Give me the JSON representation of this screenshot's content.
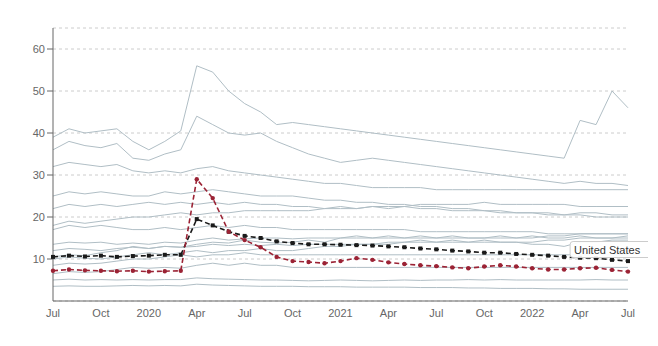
{
  "chart_data": {
    "type": "line",
    "categories": [
      "Jul",
      null,
      null,
      "Oct",
      null,
      null,
      "2020",
      null,
      null,
      "Apr",
      null,
      null,
      "Jul",
      null,
      null,
      "Oct",
      null,
      null,
      "2021",
      null,
      null,
      "Apr",
      null,
      null,
      "Jul",
      null,
      null,
      "Oct",
      null,
      null,
      "2022",
      null,
      null,
      "Apr",
      null,
      null,
      "Jul"
    ],
    "ylim": [
      0,
      65
    ],
    "yticks": [
      10,
      20,
      30,
      40,
      50,
      60
    ],
    "grid": true,
    "series": [
      {
        "color": "#b0bec5",
        "marker": "none",
        "line_style": "solid",
        "values": [
          10.0,
          10.5,
          10.2,
          10.0,
          10.5,
          11.0,
          11.5,
          11.0,
          11.5,
          12.0,
          11.5,
          12.0,
          12.0,
          12.5,
          12.0,
          12.0,
          12.5,
          13.0,
          13.0,
          13.5,
          13.5,
          14.0,
          14.0,
          14.5,
          14.0,
          14.5,
          14.0,
          14.5,
          14.0,
          14.0,
          13.5,
          13.5,
          13.0,
          14.0,
          14.0,
          14.5,
          14.5
        ]
      },
      {
        "color": "#b0bec5",
        "marker": "none",
        "line_style": "solid",
        "values": [
          5.0,
          5.2,
          5.0,
          5.1,
          5.0,
          5.1,
          5.0,
          5.1,
          5.1,
          5.5,
          5.3,
          5.2,
          5.1,
          5.0,
          5.0,
          4.9,
          4.8,
          4.9,
          5.0,
          4.9,
          4.8,
          4.9,
          5.0,
          4.9,
          5.0,
          5.0,
          5.1,
          5.0,
          5.1,
          5.0,
          5.0,
          5.0,
          5.0,
          5.0,
          5.1,
          5.0,
          5.0
        ]
      },
      {
        "color": "#b0bec5",
        "marker": "none",
        "line_style": "solid",
        "values": [
          3.5,
          3.6,
          3.5,
          3.5,
          3.6,
          3.7,
          3.6,
          3.7,
          3.6,
          4.0,
          3.8,
          3.7,
          3.6,
          3.5,
          3.5,
          3.5,
          3.4,
          3.4,
          3.4,
          3.3,
          3.3,
          3.3,
          3.3,
          3.2,
          3.2,
          3.2,
          3.1,
          3.1,
          3.0,
          3.0,
          3.0,
          2.9,
          2.9,
          2.8,
          2.8,
          2.8,
          2.8
        ]
      },
      {
        "color": "#b0bec5",
        "marker": "none",
        "line_style": "solid",
        "values": [
          10.5,
          11.0,
          10.8,
          11.5,
          12.0,
          13.0,
          12.5,
          13.0,
          12.8,
          13.5,
          14.0,
          13.8,
          14.5,
          14.0,
          13.8,
          14.0,
          14.5,
          14.0,
          15.0,
          15.5,
          15.0,
          15.5,
          15.0,
          15.5,
          15.0,
          15.5,
          15.0,
          15.0,
          15.5,
          15.0,
          15.5,
          15.0,
          15.0,
          15.5,
          15.0,
          15.0,
          15.5
        ]
      },
      {
        "color": "#b0bec5",
        "marker": "none",
        "line_style": "solid",
        "values": [
          25.0,
          26.0,
          25.5,
          26.0,
          25.5,
          25.0,
          25.0,
          26.0,
          25.5,
          26.0,
          26.5,
          26.0,
          25.5,
          25.0,
          25.0,
          25.0,
          24.5,
          24.0,
          24.0,
          23.5,
          23.5,
          23.0,
          23.0,
          22.5,
          22.5,
          22.0,
          22.0,
          21.5,
          21.5,
          21.0,
          21.0,
          21.0,
          20.5,
          21.0,
          21.0,
          20.5,
          20.5
        ]
      },
      {
        "color": "#b0bec5",
        "marker": "none",
        "line_style": "solid",
        "values": [
          22.0,
          23.0,
          22.5,
          23.0,
          22.5,
          23.0,
          23.5,
          23.0,
          23.5,
          23.0,
          23.5,
          23.0,
          23.5,
          23.0,
          23.0,
          22.5,
          22.5,
          22.0,
          22.5,
          22.0,
          22.5,
          22.0,
          22.5,
          22.0,
          22.0,
          21.5,
          21.5,
          21.5,
          21.0,
          21.0,
          21.0,
          20.5,
          20.5,
          20.5,
          20.0,
          20.0,
          20.0
        ]
      },
      {
        "color": "#b0bec5",
        "marker": "none",
        "line_style": "solid",
        "values": [
          17.0,
          18.0,
          17.5,
          18.0,
          17.5,
          17.0,
          17.0,
          17.5,
          17.0,
          17.5,
          18.0,
          17.5,
          18.0,
          17.5,
          17.5,
          17.0,
          17.0,
          17.0,
          17.0,
          17.0,
          17.0,
          17.0,
          17.0,
          16.5,
          16.5,
          16.5,
          16.5,
          16.5,
          16.5,
          16.5,
          16.5,
          16.0,
          16.0,
          16.0,
          16.0,
          16.0,
          16.0
        ]
      },
      {
        "color": "#b0bec5",
        "marker": "none",
        "line_style": "solid",
        "values": [
          13.5,
          14.0,
          13.8,
          14.0,
          13.5,
          13.8,
          13.5,
          14.0,
          13.8,
          14.5,
          15.0,
          14.5,
          14.8,
          15.0,
          15.0,
          14.8,
          15.0,
          15.0,
          15.0,
          15.0,
          15.0,
          15.0,
          15.0,
          15.0,
          15.0,
          15.0,
          15.0,
          15.0,
          15.0,
          15.0,
          15.0,
          15.5,
          15.5,
          16.0,
          16.0,
          16.0,
          16.0
        ]
      },
      {
        "color": "#b0bec5",
        "marker": "none",
        "line_style": "solid",
        "values": [
          36.0,
          38.0,
          37.0,
          36.5,
          37.5,
          34.0,
          33.5,
          35.0,
          36.0,
          44.0,
          42.0,
          40.0,
          39.5,
          40.0,
          38.0,
          36.5,
          35.0,
          34.0,
          33.0,
          33.5,
          34.0,
          33.5,
          33.0,
          32.5,
          32.0,
          31.5,
          31.0,
          30.5,
          30.0,
          29.5,
          29.0,
          28.5,
          28.0,
          28.5,
          28.0,
          28.0,
          27.5
        ]
      },
      {
        "color": "#b0bec5",
        "marker": "none",
        "line_style": "solid",
        "values": [
          32.0,
          33.0,
          32.5,
          32.0,
          32.5,
          31.0,
          30.5,
          31.0,
          30.5,
          31.5,
          32.0,
          31.0,
          30.5,
          30.0,
          29.5,
          29.0,
          28.5,
          28.0,
          28.0,
          27.5,
          27.0,
          27.0,
          27.0,
          27.0,
          26.5,
          26.5,
          26.5,
          26.5,
          26.5,
          26.5,
          26.5,
          26.5,
          26.5,
          26.5,
          26.5,
          26.5,
          26.5
        ]
      },
      {
        "color": "#b0bec5",
        "marker": "none",
        "line_style": "solid",
        "values": [
          18.0,
          19.0,
          18.5,
          19.0,
          19.5,
          20.0,
          20.0,
          20.5,
          21.0,
          20.5,
          21.0,
          21.0,
          21.5,
          21.5,
          21.5,
          21.5,
          21.5,
          22.0,
          22.0,
          22.0,
          22.5,
          22.5,
          22.5,
          23.0,
          23.0,
          23.0,
          23.0,
          23.5,
          23.0,
          23.0,
          23.0,
          23.0,
          23.0,
          22.5,
          22.5,
          22.5,
          22.5
        ]
      },
      {
        "color": "#b0bec5",
        "marker": "none",
        "line_style": "solid",
        "values": [
          39.0,
          41.0,
          40.0,
          40.5,
          41.0,
          38.0,
          36.0,
          38.0,
          40.5,
          56.0,
          54.5,
          50.0,
          47.0,
          45.0,
          42.0,
          42.5,
          42.0,
          41.5,
          41.0,
          40.5,
          40.0,
          39.5,
          39.0,
          38.5,
          38.0,
          37.5,
          37.0,
          36.5,
          36.0,
          35.5,
          35.0,
          34.5,
          34.0,
          43.0,
          42.0,
          50.0,
          46.0
        ]
      },
      {
        "color": "#b0bec5",
        "marker": "none",
        "line_style": "solid",
        "values": [
          8.5,
          9.0,
          8.8,
          9.0,
          9.5,
          10.0,
          10.0,
          10.5,
          11.0,
          10.5,
          11.0,
          11.0,
          11.5,
          11.0,
          11.0,
          11.0,
          11.0,
          11.0,
          11.0,
          11.0,
          11.0,
          11.0,
          11.0,
          11.0,
          11.0,
          11.0,
          11.0,
          11.0,
          11.0,
          11.0,
          11.0,
          11.0,
          11.0,
          11.0,
          11.0,
          11.0,
          11.0
        ]
      },
      {
        "color": "#b0bec5",
        "marker": "none",
        "line_style": "solid",
        "values": [
          12.0,
          12.5,
          12.3,
          12.0,
          12.5,
          12.8,
          12.5,
          13.0,
          12.8,
          13.0,
          13.5,
          13.2,
          13.5,
          13.2,
          13.5,
          13.2,
          13.5,
          13.5,
          13.5,
          13.5,
          13.5,
          13.5,
          14.0,
          14.0,
          14.0,
          14.0,
          14.0,
          14.0,
          14.0,
          14.0,
          14.0,
          14.5,
          14.5,
          15.0,
          15.0,
          15.0,
          15.0
        ]
      },
      {
        "color": "#b0bec5",
        "marker": "none",
        "line_style": "solid",
        "values": [
          6.5,
          7.0,
          6.8,
          7.0,
          7.5,
          8.0,
          7.8,
          8.0,
          7.8,
          8.5,
          9.0,
          8.5,
          9.0,
          8.5,
          8.5,
          8.0,
          8.0,
          8.0,
          8.0,
          8.0,
          8.0,
          8.0,
          8.0,
          8.0,
          8.0,
          8.0,
          8.0,
          8.0,
          8.0,
          8.0,
          8.0,
          8.0,
          8.0,
          8.0,
          8.0,
          8.0,
          8.0
        ]
      },
      {
        "color": "#1a1a1a",
        "marker": "square",
        "line_style": "dashed",
        "values": [
          10.5,
          10.8,
          10.6,
          10.8,
          10.5,
          10.7,
          10.8,
          11.0,
          11.0,
          19.5,
          18.0,
          16.5,
          15.5,
          15.0,
          14.2,
          13.8,
          13.5,
          13.5,
          13.4,
          13.3,
          13.2,
          13.0,
          12.8,
          12.5,
          12.3,
          12.0,
          11.8,
          11.5,
          11.5,
          11.2,
          11.0,
          10.8,
          10.5,
          10.3,
          10.2,
          9.8,
          9.5
        ]
      },
      {
        "name": "United States",
        "color": "#9b2335",
        "marker": "circle",
        "line_style": "dashed",
        "values": [
          7.2,
          7.5,
          7.3,
          7.2,
          7.1,
          7.2,
          7.0,
          7.1,
          7.2,
          29.0,
          24.5,
          16.5,
          14.5,
          12.8,
          10.5,
          9.5,
          9.3,
          9.0,
          9.5,
          10.2,
          9.8,
          9.2,
          8.8,
          8.5,
          8.3,
          8.0,
          7.8,
          8.2,
          8.5,
          8.2,
          7.8,
          7.5,
          7.5,
          7.8,
          7.9,
          7.4,
          7.0
        ]
      }
    ]
  }
}
